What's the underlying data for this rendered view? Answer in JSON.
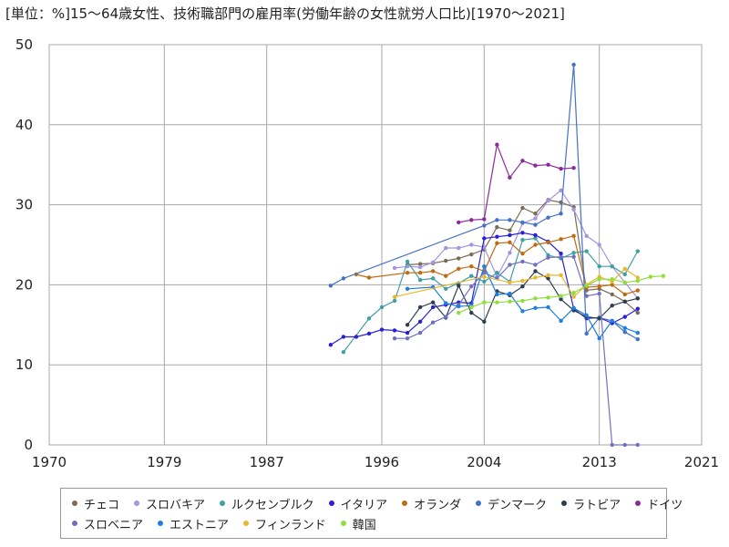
{
  "chart_data": {
    "type": "line",
    "title": "[単位：%]15〜64歳女性、技術職部門の雇用率(労働年齢の女性就労人口比)[1970〜2021]",
    "xlim": [
      1970,
      2021
    ],
    "ylim": [
      0,
      50
    ],
    "x_ticks": [
      1970,
      1979,
      1987,
      1996,
      2004,
      2013,
      2021
    ],
    "y_ticks": [
      0,
      10,
      20,
      30,
      40,
      50
    ],
    "grid": true,
    "legend_position": "bottom",
    "series": [
      {
        "name": "チェコ",
        "color": "#7b6c55",
        "x": [
          1998,
          1999,
          2000,
          2001,
          2002,
          2003,
          2004,
          2005,
          2006,
          2007,
          2008,
          2009,
          2010,
          2011,
          2012,
          2013,
          2014,
          2015,
          2016
        ],
        "y": [
          22.5,
          22.6,
          22.7,
          23.0,
          23.3,
          23.8,
          24.4,
          27.2,
          26.8,
          29.6,
          28.9,
          30.6,
          30.3,
          29.7,
          19.3,
          19.5,
          18.8,
          17.9,
          16.5
        ]
      },
      {
        "name": "スロバキア",
        "color": "#a395e0",
        "x": [
          1997,
          1998,
          1999,
          2000,
          2001,
          2002,
          2003,
          2004,
          2005,
          2006,
          2007,
          2008,
          2009,
          2010,
          2011,
          2012,
          2013,
          2014,
          2015,
          2016
        ],
        "y": [
          22.1,
          22.3,
          22.2,
          22.8,
          24.6,
          24.6,
          25.0,
          24.7,
          21.0,
          24.0,
          27.7,
          28.3,
          30.5,
          31.8,
          29.4,
          26.1,
          25.0,
          22.3,
          20.3,
          18.3
        ]
      },
      {
        "name": "ルクセンブルク",
        "color": "#3f9fa5",
        "x": [
          1993,
          1995,
          1996,
          1997,
          1998,
          1999,
          2000,
          2001,
          2002,
          2003,
          2004,
          2005,
          2006,
          2007,
          2008,
          2009,
          2010,
          2011,
          2012,
          2013,
          2014,
          2015,
          2016
        ],
        "y": [
          11.6,
          15.8,
          17.2,
          18.0,
          22.9,
          20.6,
          20.8,
          19.5,
          20.2,
          21.1,
          20.4,
          21.5,
          20.4,
          25.6,
          25.8,
          23.7,
          23.3,
          24.0,
          24.2,
          22.3,
          22.3,
          21.3,
          24.2
        ]
      },
      {
        "name": "イタリア",
        "color": "#2a1fd6",
        "x": [
          1992,
          1993,
          1994,
          1995,
          1996,
          1997,
          1998,
          1999,
          2000,
          2001,
          2002,
          2003,
          2004,
          2005,
          2006,
          2007,
          2008,
          2009,
          2010,
          2011,
          2012,
          2013,
          2014,
          2015,
          2016
        ],
        "y": [
          12.5,
          13.5,
          13.5,
          13.9,
          14.4,
          14.3,
          14.0,
          15.4,
          17.2,
          17.5,
          17.8,
          17.7,
          25.8,
          26.0,
          26.2,
          26.5,
          26.2,
          25.4,
          23.9,
          17.0,
          15.8,
          15.9,
          15.2,
          16.0,
          17.0
        ]
      },
      {
        "name": "オランダ",
        "color": "#c06a12",
        "x": [
          1994,
          1995,
          1998,
          1999,
          2000,
          2001,
          2002,
          2003,
          2004,
          2005,
          2006,
          2007,
          2008,
          2009,
          2010,
          2011,
          2012,
          2013,
          2014,
          2015,
          2016
        ],
        "y": [
          21.3,
          20.9,
          21.5,
          21.5,
          21.7,
          21.1,
          22.0,
          22.3,
          21.7,
          25.2,
          25.3,
          23.9,
          25.0,
          25.3,
          25.7,
          26.1,
          19.7,
          19.8,
          20.0,
          18.8,
          19.3
        ]
      },
      {
        "name": "デンマーク",
        "color": "#4472c4",
        "x": [
          1992,
          1993,
          2004,
          2005,
          2006,
          2007,
          2008,
          2009,
          2010,
          2011,
          2012,
          2013,
          2014,
          2015,
          2016
        ],
        "y": [
          19.9,
          20.8,
          27.4,
          28.1,
          28.1,
          27.8,
          27.5,
          28.4,
          28.9,
          47.5,
          13.9,
          15.9,
          15.5,
          14.1,
          13.2
        ]
      },
      {
        "name": "ラトビア",
        "color": "#2d3f4e",
        "x": [
          1998,
          1999,
          2000,
          2001,
          2002,
          2003,
          2004,
          2005,
          2006,
          2007,
          2008,
          2009,
          2010,
          2011,
          2012,
          2013,
          2014,
          2015,
          2016
        ],
        "y": [
          15.0,
          17.2,
          17.8,
          15.9,
          19.9,
          16.5,
          15.4,
          19.2,
          18.7,
          19.8,
          21.7,
          20.8,
          18.2,
          16.8,
          16.0,
          15.8,
          17.4,
          17.9,
          18.3
        ]
      },
      {
        "name": "ドイツ",
        "color": "#8b2a9b",
        "x": [
          2002,
          2003,
          2004,
          2005,
          2006,
          2007,
          2008,
          2009,
          2010,
          2011
        ],
        "y": [
          27.8,
          28.1,
          28.2,
          37.5,
          33.4,
          35.5,
          34.9,
          35.0,
          34.5,
          34.6
        ]
      },
      {
        "name": "スロベニア",
        "color": "#7070c0",
        "x": [
          1997,
          1998,
          1999,
          2000,
          2001,
          2002,
          2003,
          2004,
          2005,
          2006,
          2007,
          2008,
          2009,
          2010,
          2011,
          2012,
          2013,
          2014,
          2015,
          2016
        ],
        "y": [
          13.3,
          13.3,
          14.0,
          15.3,
          16.0,
          17.5,
          19.8,
          21.5,
          20.8,
          22.5,
          22.9,
          22.5,
          23.4,
          23.5,
          23.5,
          18.6,
          18.9,
          0,
          0,
          0
        ]
      },
      {
        "name": "エストニア",
        "color": "#1f7fe0",
        "x": [
          1998,
          2000,
          2001,
          2002,
          2003,
          2004,
          2005,
          2006,
          2007,
          2008,
          2009,
          2010,
          2011,
          2012,
          2013,
          2014,
          2015,
          2016
        ],
        "y": [
          19.5,
          19.7,
          17.7,
          17.3,
          17.4,
          22.3,
          18.8,
          18.9,
          16.7,
          17.1,
          17.2,
          15.5,
          17.1,
          16.2,
          13.3,
          15.5,
          14.6,
          14.0
        ]
      },
      {
        "name": "フィンランド",
        "color": "#e8b830",
        "x": [
          1997,
          2004,
          2006,
          2007,
          2008,
          2009,
          2010,
          2011,
          2012,
          2013,
          2014,
          2015,
          2016
        ],
        "y": [
          18.5,
          21.0,
          20.3,
          20.5,
          20.9,
          21.2,
          21.2,
          18.5,
          20.0,
          21.0,
          20.4,
          22.0,
          20.9
        ]
      },
      {
        "name": "韓国",
        "color": "#8fde3a",
        "x": [
          2002,
          2003,
          2004,
          2005,
          2006,
          2007,
          2008,
          2009,
          2010,
          2011,
          2012,
          2013,
          2014,
          2015,
          2016,
          2017,
          2018
        ],
        "y": [
          16.5,
          17.2,
          17.8,
          17.8,
          17.9,
          18.0,
          18.3,
          18.4,
          18.6,
          19.0,
          19.9,
          20.7,
          20.7,
          20.3,
          20.5,
          21.0,
          21.1
        ]
      }
    ]
  }
}
